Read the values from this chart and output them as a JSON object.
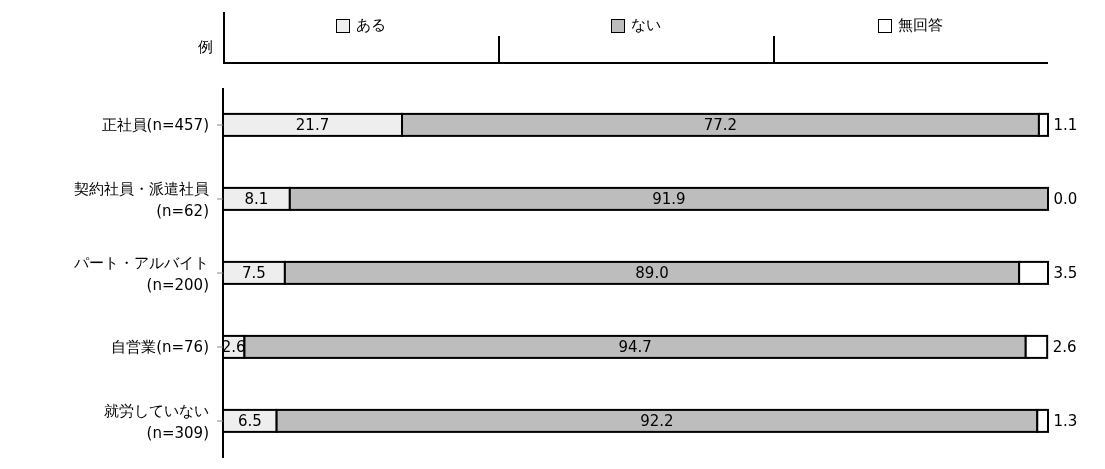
{
  "chart_data": {
    "type": "bar",
    "orientation": "horizontal",
    "stacked": true,
    "legend": "top",
    "legend_title": "例",
    "categories": [
      "正社員(n=457)",
      "契約社員・派遣社員 (n=62)",
      "パート・アルバイト (n=200)",
      "自営業(n=76)",
      "就労していない (n=309)"
    ],
    "series": [
      {
        "name": "ある",
        "color": "#eeeeee",
        "values": [
          21.7,
          8.1,
          7.5,
          2.6,
          6.5
        ],
        "value_labels": [
          "21.7",
          "8.1",
          "7.5",
          "2.6",
          "6.5"
        ]
      },
      {
        "name": "ない",
        "color": "#bdbdbd",
        "values": [
          77.2,
          91.9,
          89.0,
          94.7,
          92.2
        ],
        "value_labels": [
          "77.2",
          "91.9",
          "89.0",
          "94.7",
          "92.2"
        ]
      },
      {
        "name": "無回答",
        "color": "#ffffff",
        "values": [
          1.1,
          0.0,
          3.5,
          2.6,
          1.3
        ],
        "value_labels": [
          "1.1",
          "0.0",
          "3.5",
          "2.6",
          "1.3"
        ]
      }
    ]
  }
}
